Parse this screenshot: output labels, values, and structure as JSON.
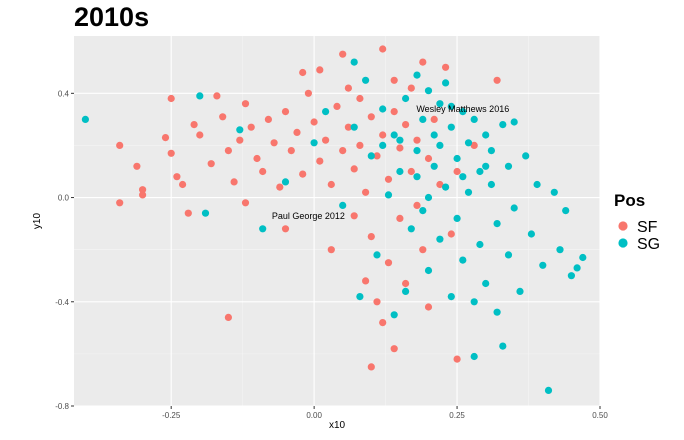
{
  "chart_data": {
    "type": "scatter",
    "title": "2010s",
    "xlabel": "x10",
    "ylabel": "y10",
    "xlim": [
      -0.42,
      0.5
    ],
    "ylim": [
      -0.8,
      0.62
    ],
    "x_ticks": [
      "-0.25",
      "0.00",
      "0.25",
      "0.50"
    ],
    "x_tick_values": [
      -0.25,
      0.0,
      0.25,
      0.5
    ],
    "y_ticks": [
      "-0.8",
      "-0.4",
      "0.0",
      "0.4"
    ],
    "y_tick_values": [
      -0.8,
      -0.4,
      0.0,
      0.4
    ],
    "grid": true,
    "legend": {
      "title": "Pos",
      "position": "right",
      "entries": [
        {
          "label": "SF",
          "color": "#f8766d"
        },
        {
          "label": "SG",
          "color": "#00bfc4"
        }
      ]
    },
    "annotations": [
      {
        "text": "Wesley Matthews 2016",
        "x": 0.26,
        "y": 0.34
      },
      {
        "text": "Paul George 2012",
        "x": -0.01,
        "y": -0.07
      }
    ],
    "series": [
      {
        "name": "SF",
        "color": "#f8766d",
        "points": [
          [
            -0.34,
            0.2
          ],
          [
            -0.34,
            -0.02
          ],
          [
            -0.31,
            0.12
          ],
          [
            -0.3,
            0.03
          ],
          [
            -0.3,
            0.01
          ],
          [
            -0.26,
            0.23
          ],
          [
            -0.25,
            0.38
          ],
          [
            -0.25,
            0.17
          ],
          [
            -0.24,
            0.08
          ],
          [
            -0.23,
            0.05
          ],
          [
            -0.22,
            -0.06
          ],
          [
            -0.21,
            0.28
          ],
          [
            -0.2,
            0.24
          ],
          [
            -0.18,
            0.13
          ],
          [
            -0.17,
            0.39
          ],
          [
            -0.16,
            0.31
          ],
          [
            -0.15,
            0.18
          ],
          [
            -0.15,
            -0.46
          ],
          [
            -0.14,
            0.06
          ],
          [
            -0.13,
            0.22
          ],
          [
            -0.12,
            0.36
          ],
          [
            -0.11,
            0.27
          ],
          [
            -0.1,
            0.15
          ],
          [
            -0.09,
            0.1
          ],
          [
            -0.08,
            0.3
          ],
          [
            -0.07,
            0.21
          ],
          [
            -0.06,
            0.04
          ],
          [
            -0.05,
            0.33
          ],
          [
            -0.04,
            0.18
          ],
          [
            -0.03,
            0.25
          ],
          [
            -0.02,
            0.09
          ],
          [
            -0.01,
            0.4
          ],
          [
            0.0,
            0.29
          ],
          [
            0.01,
            0.14
          ],
          [
            0.01,
            0.49
          ],
          [
            0.02,
            0.22
          ],
          [
            0.03,
            0.05
          ],
          [
            0.04,
            0.35
          ],
          [
            0.05,
            0.18
          ],
          [
            0.05,
            0.55
          ],
          [
            0.06,
            0.27
          ],
          [
            0.07,
            0.11
          ],
          [
            0.07,
            -0.07
          ],
          [
            0.08,
            0.38
          ],
          [
            0.08,
            0.2
          ],
          [
            0.09,
            0.02
          ],
          [
            0.1,
            0.31
          ],
          [
            0.1,
            -0.15
          ],
          [
            0.11,
            0.16
          ],
          [
            0.11,
            -0.4
          ],
          [
            0.12,
            0.24
          ],
          [
            0.12,
            0.57
          ],
          [
            0.13,
            0.07
          ],
          [
            0.13,
            -0.25
          ],
          [
            0.14,
            0.33
          ],
          [
            0.14,
            -0.58
          ],
          [
            0.15,
            0.19
          ],
          [
            0.15,
            -0.08
          ],
          [
            0.16,
            0.28
          ],
          [
            0.16,
            -0.33
          ],
          [
            0.17,
            0.42
          ],
          [
            0.17,
            0.1
          ],
          [
            0.18,
            0.22
          ],
          [
            0.18,
            -0.03
          ],
          [
            0.19,
            0.52
          ],
          [
            0.19,
            -0.2
          ],
          [
            0.2,
            0.15
          ],
          [
            0.2,
            -0.42
          ],
          [
            0.21,
            0.3
          ],
          [
            0.22,
            0.05
          ],
          [
            0.23,
            0.5
          ],
          [
            0.24,
            -0.14
          ],
          [
            0.25,
            -0.62
          ],
          [
            0.25,
            0.1
          ],
          [
            0.28,
            0.2
          ],
          [
            0.32,
            0.45
          ],
          [
            0.1,
            -0.65
          ],
          [
            0.12,
            -0.48
          ],
          [
            -0.05,
            -0.12
          ],
          [
            0.03,
            -0.2
          ],
          [
            -0.12,
            -0.02
          ],
          [
            0.06,
            0.42
          ],
          [
            -0.02,
            0.48
          ],
          [
            0.09,
            -0.32
          ],
          [
            0.14,
            0.45
          ]
        ]
      },
      {
        "name": "SG",
        "color": "#00bfc4",
        "points": [
          [
            -0.4,
            0.3
          ],
          [
            -0.2,
            0.39
          ],
          [
            -0.19,
            -0.06
          ],
          [
            -0.13,
            0.26
          ],
          [
            -0.09,
            -0.12
          ],
          [
            -0.05,
            0.06
          ],
          [
            0.0,
            0.21
          ],
          [
            0.02,
            0.33
          ],
          [
            0.05,
            -0.03
          ],
          [
            0.07,
            0.27
          ],
          [
            0.07,
            0.52
          ],
          [
            0.09,
            0.45
          ],
          [
            0.1,
            0.16
          ],
          [
            0.11,
            -0.22
          ],
          [
            0.12,
            0.34
          ],
          [
            0.13,
            0.01
          ],
          [
            0.14,
            0.24
          ],
          [
            0.14,
            -0.45
          ],
          [
            0.15,
            0.1
          ],
          [
            0.16,
            0.38
          ],
          [
            0.16,
            -0.36
          ],
          [
            0.17,
            -0.12
          ],
          [
            0.18,
            0.47
          ],
          [
            0.18,
            0.18
          ],
          [
            0.19,
            0.3
          ],
          [
            0.19,
            -0.05
          ],
          [
            0.2,
            0.41
          ],
          [
            0.2,
            -0.28
          ],
          [
            0.21,
            0.12
          ],
          [
            0.21,
            0.24
          ],
          [
            0.22,
            0.36
          ],
          [
            0.22,
            -0.16
          ],
          [
            0.23,
            0.04
          ],
          [
            0.23,
            0.44
          ],
          [
            0.24,
            0.27
          ],
          [
            0.24,
            -0.38
          ],
          [
            0.25,
            0.15
          ],
          [
            0.25,
            -0.08
          ],
          [
            0.26,
            0.33
          ],
          [
            0.26,
            -0.24
          ],
          [
            0.27,
            0.21
          ],
          [
            0.27,
            0.02
          ],
          [
            0.28,
            0.3
          ],
          [
            0.28,
            -0.61
          ],
          [
            0.29,
            0.1
          ],
          [
            0.29,
            -0.18
          ],
          [
            0.3,
            0.24
          ],
          [
            0.3,
            -0.33
          ],
          [
            0.31,
            0.05
          ],
          [
            0.31,
            0.18
          ],
          [
            0.32,
            -0.1
          ],
          [
            0.32,
            -0.44
          ],
          [
            0.33,
            0.28
          ],
          [
            0.33,
            -0.57
          ],
          [
            0.34,
            0.12
          ],
          [
            0.34,
            -0.22
          ],
          [
            0.35,
            0.29
          ],
          [
            0.35,
            -0.04
          ],
          [
            0.36,
            -0.36
          ],
          [
            0.37,
            0.16
          ],
          [
            0.38,
            -0.14
          ],
          [
            0.39,
            0.05
          ],
          [
            0.4,
            -0.26
          ],
          [
            0.41,
            -0.74
          ],
          [
            0.42,
            0.02
          ],
          [
            0.43,
            -0.2
          ],
          [
            0.44,
            -0.05
          ],
          [
            0.45,
            -0.3
          ],
          [
            0.46,
            -0.27
          ],
          [
            0.47,
            -0.23
          ],
          [
            0.08,
            -0.38
          ],
          [
            0.15,
            0.22
          ],
          [
            0.18,
            0.08
          ],
          [
            0.22,
            0.2
          ],
          [
            0.26,
            0.08
          ],
          [
            0.12,
            0.2
          ],
          [
            0.2,
            0.0
          ],
          [
            0.24,
            0.35
          ],
          [
            0.28,
            -0.4
          ],
          [
            0.3,
            0.12
          ]
        ]
      }
    ]
  }
}
